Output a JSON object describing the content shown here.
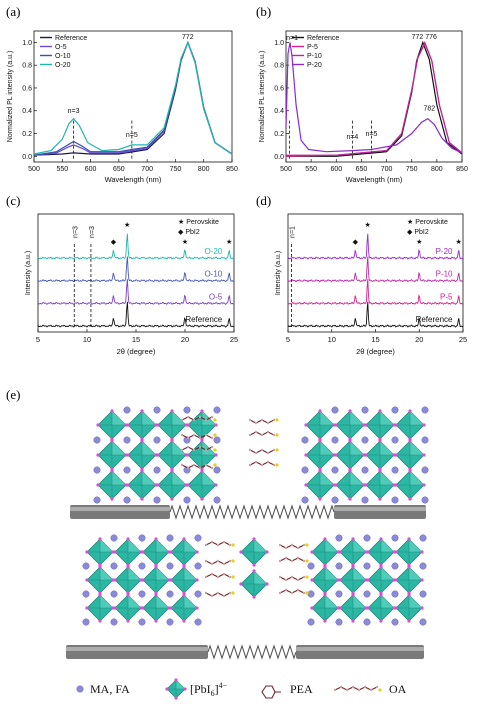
{
  "chart_data": [
    {
      "panel": "(a)",
      "type": "line",
      "xlabel": "Wavelength (nm)",
      "ylabel": "Normalized PL intensity (a.u.)",
      "xlim": [
        500,
        850
      ],
      "ylim": [
        -0.05,
        1.1
      ],
      "xticks": [
        500,
        550,
        600,
        650,
        700,
        750,
        800,
        850
      ],
      "yticks": [
        0.0,
        0.2,
        0.4,
        0.6,
        0.8,
        1.0
      ],
      "legend_position": "top-left",
      "annotations": [
        {
          "text": "772",
          "x": 772,
          "y": 1.03
        },
        {
          "text": "n=3",
          "x": 570,
          "y": 0.38
        },
        {
          "text": "n=5",
          "x": 673,
          "y": 0.17
        }
      ],
      "dashed_lines_x": [
        570,
        673
      ],
      "series": [
        {
          "name": "Reference",
          "color": "#1a1a4a",
          "points": [
            [
              500,
              0.01
            ],
            [
              550,
              0.02
            ],
            [
              570,
              0.03
            ],
            [
              600,
              0.02
            ],
            [
              650,
              0.02
            ],
            [
              700,
              0.06
            ],
            [
              730,
              0.2
            ],
            [
              750,
              0.58
            ],
            [
              760,
              0.84
            ],
            [
              772,
              1.0
            ],
            [
              785,
              0.83
            ],
            [
              800,
              0.43
            ],
            [
              820,
              0.12
            ],
            [
              850,
              0.02
            ]
          ]
        },
        {
          "name": "O-5",
          "color": "#6a4bd8",
          "points": [
            [
              500,
              0.01
            ],
            [
              540,
              0.03
            ],
            [
              560,
              0.08
            ],
            [
              570,
              0.1
            ],
            [
              585,
              0.07
            ],
            [
              600,
              0.03
            ],
            [
              650,
              0.03
            ],
            [
              673,
              0.05
            ],
            [
              700,
              0.07
            ],
            [
              730,
              0.22
            ],
            [
              750,
              0.6
            ],
            [
              760,
              0.85
            ],
            [
              772,
              1.0
            ],
            [
              785,
              0.83
            ],
            [
              800,
              0.42
            ],
            [
              820,
              0.12
            ],
            [
              850,
              0.02
            ]
          ]
        },
        {
          "name": "O-10",
          "color": "#3a4fb0",
          "points": [
            [
              500,
              0.01
            ],
            [
              540,
              0.04
            ],
            [
              560,
              0.1
            ],
            [
              570,
              0.13
            ],
            [
              585,
              0.09
            ],
            [
              600,
              0.04
            ],
            [
              650,
              0.04
            ],
            [
              673,
              0.06
            ],
            [
              700,
              0.08
            ],
            [
              730,
              0.23
            ],
            [
              750,
              0.6
            ],
            [
              760,
              0.85
            ],
            [
              772,
              1.0
            ],
            [
              785,
              0.82
            ],
            [
              800,
              0.42
            ],
            [
              820,
              0.12
            ],
            [
              850,
              0.02
            ]
          ]
        },
        {
          "name": "O-20",
          "color": "#1fb8ad",
          "points": [
            [
              500,
              0.02
            ],
            [
              530,
              0.05
            ],
            [
              550,
              0.15
            ],
            [
              562,
              0.29
            ],
            [
              570,
              0.33
            ],
            [
              580,
              0.27
            ],
            [
              595,
              0.12
            ],
            [
              620,
              0.05
            ],
            [
              650,
              0.06
            ],
            [
              673,
              0.1
            ],
            [
              700,
              0.1
            ],
            [
              730,
              0.25
            ],
            [
              750,
              0.62
            ],
            [
              760,
              0.86
            ],
            [
              772,
              1.0
            ],
            [
              785,
              0.82
            ],
            [
              800,
              0.42
            ],
            [
              820,
              0.12
            ],
            [
              850,
              0.02
            ]
          ]
        }
      ]
    },
    {
      "panel": "(b)",
      "type": "line",
      "xlabel": "Wavelength (nm)",
      "ylabel": "Normalized PL intensity (a.u.)",
      "xlim": [
        500,
        850
      ],
      "ylim": [
        -0.05,
        1.1
      ],
      "xticks": [
        500,
        550,
        600,
        650,
        700,
        750,
        800,
        850
      ],
      "yticks": [
        0.0,
        0.2,
        0.4,
        0.6,
        0.8,
        1.0
      ],
      "legend_position": "top-left",
      "annotations": [
        {
          "text": "n=1",
          "x": 512,
          "y": 1.02
        },
        {
          "text": "772 776",
          "x": 775,
          "y": 1.03
        },
        {
          "text": "782",
          "x": 785,
          "y": 0.4
        },
        {
          "text": "n=4",
          "x": 632,
          "y": 0.15
        },
        {
          "text": "n=5",
          "x": 670,
          "y": 0.18
        }
      ],
      "dashed_lines_x": [
        507,
        632,
        670
      ],
      "series": [
        {
          "name": "Reference",
          "color": "#111111",
          "points": [
            [
              500,
              0.0
            ],
            [
              600,
              0.0
            ],
            [
              700,
              0.04
            ],
            [
              730,
              0.18
            ],
            [
              750,
              0.56
            ],
            [
              760,
              0.84
            ],
            [
              772,
              1.0
            ],
            [
              785,
              0.85
            ],
            [
              800,
              0.45
            ],
            [
              820,
              0.12
            ],
            [
              850,
              0.02
            ]
          ]
        },
        {
          "name": "P-5",
          "color": "#d9208c",
          "points": [
            [
              500,
              0.0
            ],
            [
              600,
              0.01
            ],
            [
              700,
              0.05
            ],
            [
              730,
              0.2
            ],
            [
              750,
              0.58
            ],
            [
              762,
              0.86
            ],
            [
              776,
              1.0
            ],
            [
              790,
              0.84
            ],
            [
              805,
              0.45
            ],
            [
              825,
              0.12
            ],
            [
              850,
              0.03
            ]
          ]
        },
        {
          "name": "P-10",
          "color": "#b8269b",
          "points": [
            [
              500,
              0.01
            ],
            [
              600,
              0.01
            ],
            [
              700,
              0.05
            ],
            [
              730,
              0.2
            ],
            [
              750,
              0.58
            ],
            [
              762,
              0.86
            ],
            [
              776,
              0.99
            ],
            [
              790,
              0.84
            ],
            [
              805,
              0.45
            ],
            [
              825,
              0.12
            ],
            [
              850,
              0.03
            ]
          ]
        },
        {
          "name": "P-20",
          "color": "#8a2ad0",
          "points": [
            [
              500,
              0.25
            ],
            [
              504,
              0.9
            ],
            [
              508,
              1.0
            ],
            [
              512,
              0.88
            ],
            [
              520,
              0.45
            ],
            [
              530,
              0.14
            ],
            [
              545,
              0.06
            ],
            [
              580,
              0.04
            ],
            [
              632,
              0.05
            ],
            [
              670,
              0.06
            ],
            [
              720,
              0.1
            ],
            [
              750,
              0.2
            ],
            [
              770,
              0.3
            ],
            [
              782,
              0.33
            ],
            [
              795,
              0.28
            ],
            [
              810,
              0.16
            ],
            [
              830,
              0.07
            ],
            [
              850,
              0.03
            ]
          ]
        }
      ]
    },
    {
      "panel": "(c)",
      "type": "line",
      "xlabel": "2θ (degree)",
      "ylabel": "Intensity (a.u.)",
      "xlim": [
        5,
        25
      ],
      "xticks": [
        5,
        10,
        15,
        20,
        25
      ],
      "legend_entries": [
        "★ Perovskite",
        "◆ PbI2"
      ],
      "annotations": [
        {
          "text": "n=3",
          "x": 8.7
        },
        {
          "text": "n=3",
          "x": 10.4
        }
      ],
      "dashed_lines_x": [
        8.7,
        10.4
      ],
      "peak_markers": [
        {
          "symbol": "diamond",
          "x": 12.7
        },
        {
          "symbol": "star",
          "x": 14.1
        },
        {
          "symbol": "star",
          "x": 20.0
        },
        {
          "symbol": "star",
          "x": 24.5
        }
      ],
      "peaks": [
        [
          12.7,
          0.35
        ],
        [
          14.1,
          1.0
        ],
        [
          20.0,
          0.35
        ],
        [
          24.5,
          0.28
        ]
      ],
      "series": [
        {
          "name": "Reference",
          "color": "#111111"
        },
        {
          "name": "O-5",
          "color": "#7a3fc8"
        },
        {
          "name": "O-10",
          "color": "#4a5ab5"
        },
        {
          "name": "O-20",
          "color": "#1fb8ad"
        }
      ]
    },
    {
      "panel": "(d)",
      "type": "line",
      "xlabel": "2θ (degree)",
      "ylabel": "Intensity (a.u.)",
      "xlim": [
        5,
        25
      ],
      "xticks": [
        5,
        10,
        15,
        20,
        25
      ],
      "legend_entries": [
        "★ Perovskite",
        "◆ PbI2"
      ],
      "annotations": [
        {
          "text": "n=1",
          "x": 5.4
        }
      ],
      "dashed_lines_x": [
        5.4
      ],
      "peak_markers": [
        {
          "symbol": "diamond",
          "x": 12.7
        },
        {
          "symbol": "star",
          "x": 14.1
        },
        {
          "symbol": "star",
          "x": 20.0
        },
        {
          "symbol": "star",
          "x": 24.5
        }
      ],
      "peaks": [
        [
          12.7,
          0.35
        ],
        [
          14.1,
          1.0
        ],
        [
          20.0,
          0.35
        ],
        [
          24.5,
          0.28
        ]
      ],
      "series": [
        {
          "name": "Reference",
          "color": "#111111"
        },
        {
          "name": "P-5",
          "color": "#d9208c"
        },
        {
          "name": "P-10",
          "color": "#c02aa8"
        },
        {
          "name": "P-20",
          "color": "#9a2ad0"
        }
      ]
    }
  ],
  "panel_e": {
    "label": "(e)",
    "legend": {
      "ma_fa": "MA, FA",
      "pbi6": "[PbI",
      "pbi6_sub": "6",
      "pbi6_sup": "]",
      "pbi6_charge": "4−",
      "pea": "PEA",
      "oa": "OA"
    },
    "colors": {
      "octahedron": "#2bb7a3",
      "octahedron_dark": "#16806f",
      "cation": "#8a8ad8",
      "iodide": "#d64fd8",
      "chain": "#7a1f2a",
      "rod": "#7a7a7a"
    }
  }
}
